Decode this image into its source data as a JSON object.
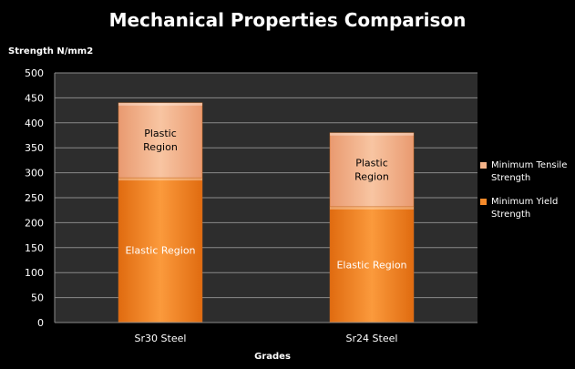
{
  "chart_data": {
    "type": "bar",
    "stacked": true,
    "title": "Mechanical Properties Comparison",
    "ylabel": "Strength N/mm2",
    "xlabel": "Grades",
    "ylim": [
      0,
      500
    ],
    "yticks": [
      0,
      50,
      100,
      150,
      200,
      250,
      300,
      350,
      400,
      450,
      500
    ],
    "grid": true,
    "legend_position": "right",
    "categories": [
      "Sr30 Steel",
      "Sr24 Steel"
    ],
    "series": [
      {
        "name": "Minimum Yield Strength",
        "values": [
          290,
          232
        ],
        "color": "#f58a2a",
        "segment_labels": [
          "Elastic Region",
          "Elastic Region"
        ]
      },
      {
        "name": "Minimum Tensile Strength",
        "values": [
          150,
          148
        ],
        "color": "#f4b389",
        "segment_labels": [
          "Plastic Region",
          "Plastic Region"
        ]
      }
    ],
    "legend": [
      {
        "text": "Minimum Tensile Strength",
        "color": "#f4b389"
      },
      {
        "text": "Minimum Yield Strength",
        "color": "#f58a2a"
      }
    ]
  }
}
